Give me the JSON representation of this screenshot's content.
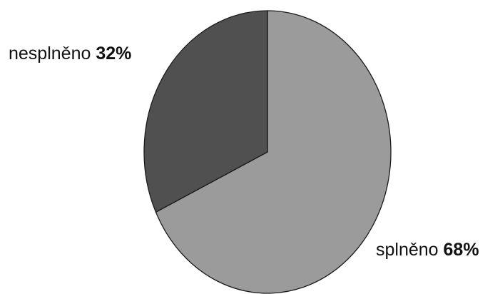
{
  "chart_data": {
    "type": "pie",
    "slices": [
      {
        "name": "nesplněno",
        "percent_label": "32%",
        "value": 32,
        "color": "#505050"
      },
      {
        "name": "splněno",
        "percent_label": "68%",
        "value": 68,
        "color": "#9b9b9b"
      }
    ],
    "start_angle_deg": 0,
    "direction": "clockwise",
    "legend": "none"
  }
}
